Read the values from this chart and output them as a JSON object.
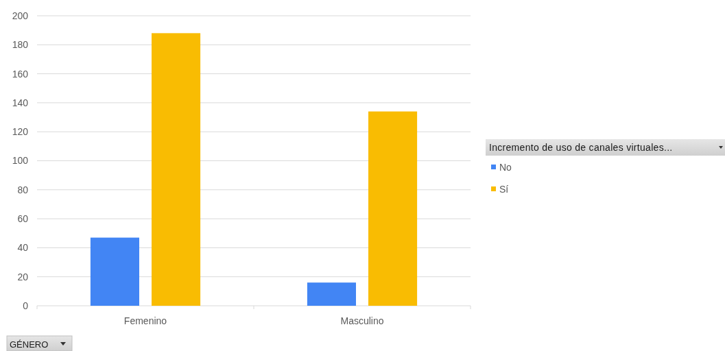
{
  "chart_data": {
    "type": "bar",
    "categories": [
      "Femenino",
      "Masculino"
    ],
    "series": [
      {
        "name": "No",
        "color": "#4285f4",
        "values": [
          47,
          16
        ]
      },
      {
        "name": "Sí",
        "color": "#f9bc02",
        "values": [
          188,
          134
        ]
      }
    ],
    "ylim": [
      0,
      200
    ],
    "yticks": [
      0,
      20,
      40,
      60,
      80,
      100,
      120,
      140,
      160,
      180,
      200
    ],
    "grid": "y",
    "legend": "right",
    "legend_title": "Incremento de uso de canales virtuales...",
    "xlabel": "GÉNERO"
  }
}
